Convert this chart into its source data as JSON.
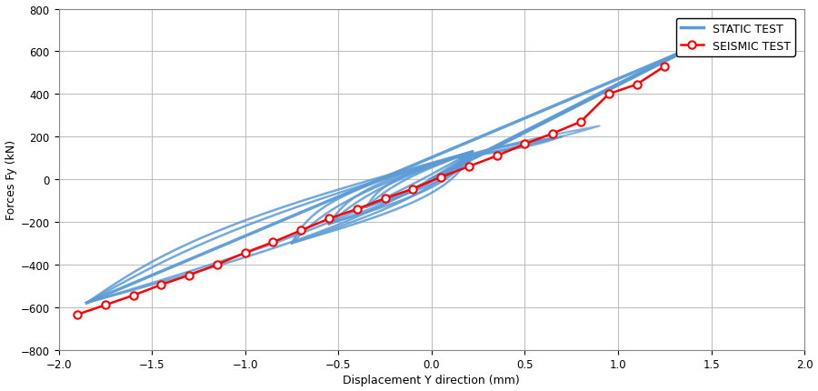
{
  "title": "",
  "xlabel": "Displacement Y direction (mm)",
  "ylabel": "Forces Fy (kN)",
  "xlim": [
    -2,
    2
  ],
  "ylim": [
    -800,
    800
  ],
  "xticks": [
    -2,
    -1.5,
    -1,
    -0.5,
    0,
    0.5,
    1,
    1.5,
    2
  ],
  "yticks": [
    -800,
    -600,
    -400,
    -200,
    0,
    200,
    400,
    600,
    800
  ],
  "static_color": "#5b9bd5",
  "seismic_color": "#ff0000",
  "background_color": "#ffffff",
  "grid_color": "#c0c0c0",
  "legend_labels": [
    "STATIC TEST",
    "SEISMIC TEST"
  ],
  "seismic_x": [
    -1.9,
    -1.75,
    -1.6,
    -1.45,
    -1.3,
    -1.15,
    -1.0,
    -0.85,
    -0.7,
    -0.55,
    -0.4,
    -0.25,
    -0.1,
    0.05,
    0.2,
    0.35,
    0.5,
    0.65,
    0.8,
    0.95,
    1.1,
    1.25
  ],
  "seismic_y": [
    -635,
    -590,
    -545,
    -495,
    -450,
    -400,
    -345,
    -295,
    -240,
    -185,
    -140,
    -90,
    -45,
    10,
    60,
    110,
    165,
    215,
    270,
    400,
    445,
    530
  ],
  "backbone_x0": -1.85,
  "backbone_y0": -580,
  "backbone_x1": 1.35,
  "backbone_y1": 600,
  "hysteresis_loops": [
    {
      "x_lo": -1.85,
      "y_lo": -580,
      "x_hi": 0.22,
      "y_hi": 130,
      "bulge": 0.28,
      "n": 300
    },
    {
      "x_lo": -1.85,
      "y_lo": -580,
      "x_hi": 0.22,
      "y_hi": 130,
      "bulge": 0.2,
      "n": 300
    },
    {
      "x_lo": -0.75,
      "y_lo": -300,
      "x_hi": 0.22,
      "y_hi": 130,
      "bulge": 0.22,
      "n": 300
    },
    {
      "x_lo": -0.75,
      "y_lo": -300,
      "x_hi": 0.22,
      "y_hi": 130,
      "bulge": 0.15,
      "n": 300
    },
    {
      "x_lo": -0.55,
      "y_lo": -210,
      "x_hi": 0.22,
      "y_hi": 130,
      "bulge": 0.16,
      "n": 300
    },
    {
      "x_lo": -0.55,
      "y_lo": -210,
      "x_hi": 0.22,
      "y_hi": 130,
      "bulge": 0.1,
      "n": 300
    },
    {
      "x_lo": -0.35,
      "y_lo": -130,
      "x_hi": 0.22,
      "y_hi": 130,
      "bulge": 0.12,
      "n": 300
    },
    {
      "x_lo": -0.35,
      "y_lo": -130,
      "x_hi": 0.22,
      "y_hi": 130,
      "bulge": 0.07,
      "n": 300
    }
  ],
  "small_loops": [
    {
      "x_lo": 0.15,
      "y_lo": 100,
      "x_hi": 0.7,
      "y_hi": 200,
      "bulge": 0.07,
      "n": 200
    },
    {
      "x_lo": 0.15,
      "y_lo": 100,
      "x_hi": 0.7,
      "y_hi": 200,
      "bulge": 0.04,
      "n": 200
    },
    {
      "x_lo": 0.15,
      "y_lo": 100,
      "x_hi": 0.9,
      "y_hi": 250,
      "bulge": 0.05,
      "n": 200
    }
  ],
  "band_x0": 0.0,
  "band_y0": 0,
  "band_x1": 1.35,
  "band_y1": 600,
  "n_band_lines": 12,
  "band_spread": 0.035
}
